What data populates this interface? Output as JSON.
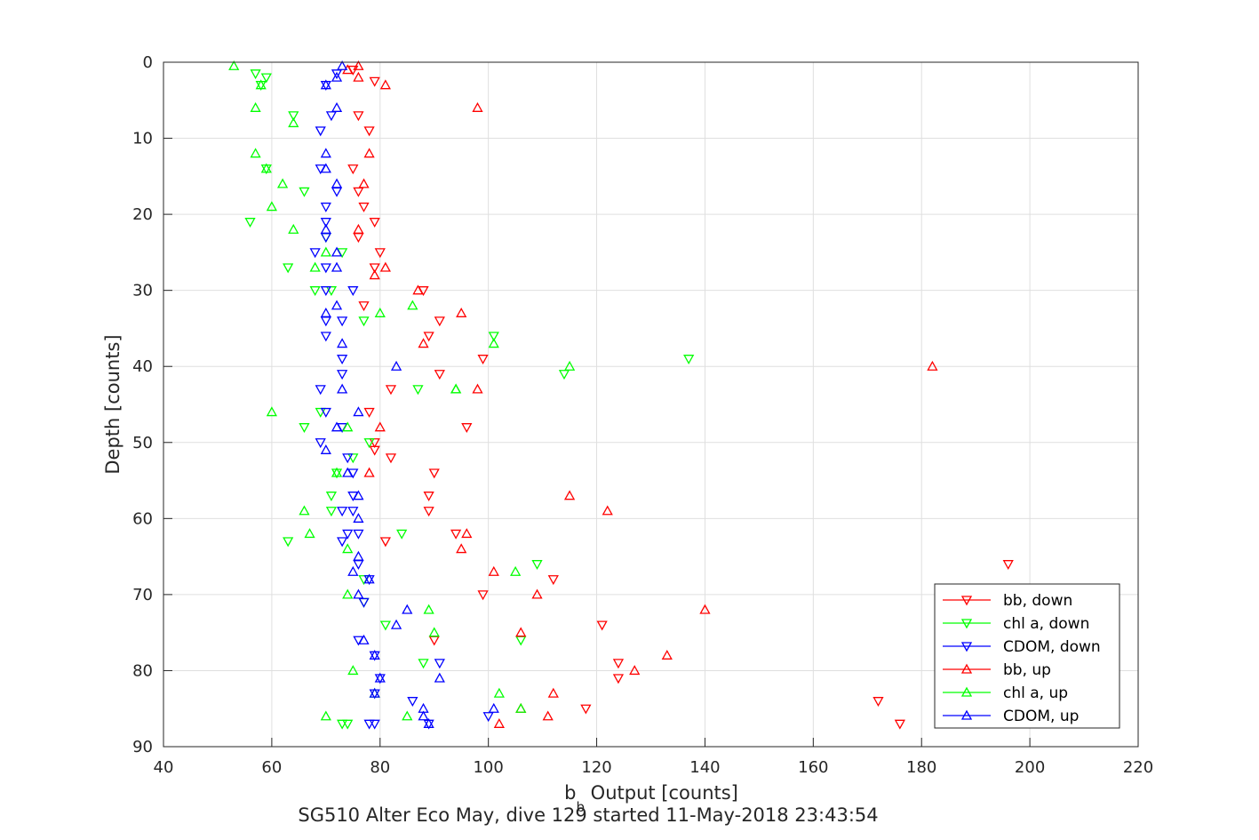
{
  "chart_data": {
    "type": "scatter",
    "xlabel_main": "b",
    "xlabel_sub": "b",
    "xlabel_rest": " Output [counts]",
    "ylabel": "Depth [counts]",
    "caption": "SG510 Alter Eco May, dive 129 started 11-May-2018 23:43:54",
    "xlim": [
      40,
      220
    ],
    "ylim": [
      0,
      90
    ],
    "y_reversed": true,
    "x_ticks": [
      40,
      60,
      80,
      100,
      120,
      140,
      160,
      180,
      200,
      220
    ],
    "y_ticks": [
      0,
      10,
      20,
      30,
      40,
      50,
      60,
      70,
      80,
      90
    ],
    "grid": true,
    "legend_position": "bottom-right",
    "series": [
      {
        "name": "bb, down",
        "color": "#ff0000",
        "marker": "triangle-down",
        "points": [
          [
            75,
            1
          ],
          [
            79,
            2.5
          ],
          [
            76,
            7
          ],
          [
            78,
            9
          ],
          [
            75,
            14
          ],
          [
            76,
            17
          ],
          [
            77,
            19
          ],
          [
            79,
            21
          ],
          [
            76,
            23
          ],
          [
            80,
            25
          ],
          [
            79,
            27
          ],
          [
            88,
            30
          ],
          [
            77,
            32
          ],
          [
            91,
            34
          ],
          [
            89,
            36
          ],
          [
            99,
            39
          ],
          [
            91,
            41
          ],
          [
            82,
            43
          ],
          [
            78,
            46
          ],
          [
            96,
            48
          ],
          [
            79,
            50
          ],
          [
            82,
            52
          ],
          [
            90,
            54
          ],
          [
            89,
            57
          ],
          [
            89,
            59
          ],
          [
            94,
            62
          ],
          [
            81,
            63
          ],
          [
            196,
            66
          ],
          [
            112,
            68
          ],
          [
            99,
            70
          ],
          [
            121,
            74
          ],
          [
            90,
            76
          ],
          [
            124,
            79
          ],
          [
            124,
            81
          ],
          [
            118,
            85
          ],
          [
            172,
            84
          ],
          [
            176,
            87
          ],
          [
            79,
            51
          ]
        ]
      },
      {
        "name": "chl a, down",
        "color": "#00ff00",
        "marker": "triangle-down",
        "points": [
          [
            57,
            1.5
          ],
          [
            59,
            2
          ],
          [
            58,
            3
          ],
          [
            64,
            7
          ],
          [
            59,
            14
          ],
          [
            66,
            17
          ],
          [
            56,
            21
          ],
          [
            70,
            23
          ],
          [
            73,
            25
          ],
          [
            63,
            27
          ],
          [
            68,
            30
          ],
          [
            71,
            30
          ],
          [
            77,
            34
          ],
          [
            101,
            36
          ],
          [
            137,
            39
          ],
          [
            114,
            41
          ],
          [
            87,
            43
          ],
          [
            69,
            46
          ],
          [
            66,
            48
          ],
          [
            78,
            50
          ],
          [
            75,
            52
          ],
          [
            72,
            54
          ],
          [
            71,
            57
          ],
          [
            71,
            59
          ],
          [
            84,
            62
          ],
          [
            63,
            63
          ],
          [
            109,
            66
          ],
          [
            77,
            68
          ],
          [
            106,
            76
          ],
          [
            81,
            74
          ],
          [
            88,
            79
          ],
          [
            74,
            87
          ],
          [
            73,
            87
          ],
          [
            77,
            71
          ]
        ]
      },
      {
        "name": "CDOM, down",
        "color": "#0000ff",
        "marker": "triangle-down",
        "points": [
          [
            72,
            1.5
          ],
          [
            70,
            3
          ],
          [
            71,
            7
          ],
          [
            69,
            9
          ],
          [
            69,
            14
          ],
          [
            72,
            17
          ],
          [
            70,
            19
          ],
          [
            70,
            21
          ],
          [
            70,
            23
          ],
          [
            68,
            25
          ],
          [
            70,
            27
          ],
          [
            70,
            30
          ],
          [
            75,
            30
          ],
          [
            70,
            34
          ],
          [
            73,
            34
          ],
          [
            70,
            36
          ],
          [
            73,
            39
          ],
          [
            73,
            41
          ],
          [
            69,
            43
          ],
          [
            70,
            46
          ],
          [
            73,
            48
          ],
          [
            69,
            50
          ],
          [
            74,
            52
          ],
          [
            75,
            54
          ],
          [
            75,
            57
          ],
          [
            73,
            59
          ],
          [
            75,
            59
          ],
          [
            74,
            62
          ],
          [
            76,
            62
          ],
          [
            73,
            63
          ],
          [
            76,
            66
          ],
          [
            78,
            68
          ],
          [
            77,
            71
          ],
          [
            76,
            76
          ],
          [
            79,
            78
          ],
          [
            91,
            79
          ],
          [
            80,
            81
          ],
          [
            86,
            84
          ],
          [
            79,
            83
          ],
          [
            100,
            86
          ],
          [
            89,
            87
          ],
          [
            78,
            87
          ],
          [
            79,
            87
          ]
        ]
      },
      {
        "name": "bb, up",
        "color": "#ff0000",
        "marker": "triangle-up",
        "points": [
          [
            76,
            0.5
          ],
          [
            74,
            1
          ],
          [
            76,
            2
          ],
          [
            81,
            3
          ],
          [
            98,
            6
          ],
          [
            78,
            12
          ],
          [
            77,
            16
          ],
          [
            76,
            22
          ],
          [
            79,
            28
          ],
          [
            81,
            27
          ],
          [
            87,
            30
          ],
          [
            95,
            33
          ],
          [
            88,
            37
          ],
          [
            182,
            40
          ],
          [
            98,
            43
          ],
          [
            80,
            48
          ],
          [
            78,
            54
          ],
          [
            115,
            57
          ],
          [
            122,
            59
          ],
          [
            96,
            62
          ],
          [
            95,
            64
          ],
          [
            101,
            67
          ],
          [
            109,
            70
          ],
          [
            140,
            72
          ],
          [
            106,
            75
          ],
          [
            133,
            78
          ],
          [
            127,
            80
          ],
          [
            112,
            83
          ],
          [
            106,
            85
          ],
          [
            111,
            86
          ],
          [
            102,
            87
          ]
        ]
      },
      {
        "name": "chl a, up",
        "color": "#00ff00",
        "marker": "triangle-up",
        "points": [
          [
            53,
            0.5
          ],
          [
            58,
            3
          ],
          [
            57,
            6
          ],
          [
            64,
            8
          ],
          [
            57,
            12
          ],
          [
            59,
            14
          ],
          [
            62,
            16
          ],
          [
            60,
            19
          ],
          [
            64,
            22
          ],
          [
            70,
            25
          ],
          [
            68,
            27
          ],
          [
            86,
            32
          ],
          [
            80,
            33
          ],
          [
            101,
            37
          ],
          [
            115,
            40
          ],
          [
            94,
            43
          ],
          [
            60,
            46
          ],
          [
            74,
            48
          ],
          [
            66,
            59
          ],
          [
            67,
            62
          ],
          [
            74,
            64
          ],
          [
            105,
            67
          ],
          [
            74,
            70
          ],
          [
            89,
            72
          ],
          [
            90,
            75
          ],
          [
            75,
            80
          ],
          [
            79,
            83
          ],
          [
            102,
            83
          ],
          [
            106,
            85
          ],
          [
            70,
            86
          ],
          [
            85,
            86
          ],
          [
            72,
            54
          ],
          [
            94,
            43
          ]
        ]
      },
      {
        "name": "CDOM, up",
        "color": "#0000ff",
        "marker": "triangle-up",
        "points": [
          [
            73,
            0.5
          ],
          [
            72,
            2
          ],
          [
            70,
            3
          ],
          [
            72,
            6
          ],
          [
            70,
            12
          ],
          [
            70,
            14
          ],
          [
            72,
            16
          ],
          [
            70,
            22
          ],
          [
            72,
            25
          ],
          [
            72,
            27
          ],
          [
            72,
            32
          ],
          [
            70,
            33
          ],
          [
            73,
            37
          ],
          [
            83,
            40
          ],
          [
            73,
            43
          ],
          [
            76,
            46
          ],
          [
            72,
            48
          ],
          [
            70,
            51
          ],
          [
            74,
            54
          ],
          [
            76,
            57
          ],
          [
            76,
            65
          ],
          [
            76,
            60
          ],
          [
            75,
            67
          ],
          [
            76,
            70
          ],
          [
            78,
            68
          ],
          [
            85,
            72
          ],
          [
            83,
            74
          ],
          [
            77,
            76
          ],
          [
            79,
            78
          ],
          [
            91,
            81
          ],
          [
            80,
            81
          ],
          [
            79,
            83
          ],
          [
            88,
            85
          ],
          [
            101,
            85
          ],
          [
            88,
            86
          ],
          [
            89,
            87
          ]
        ]
      }
    ]
  }
}
